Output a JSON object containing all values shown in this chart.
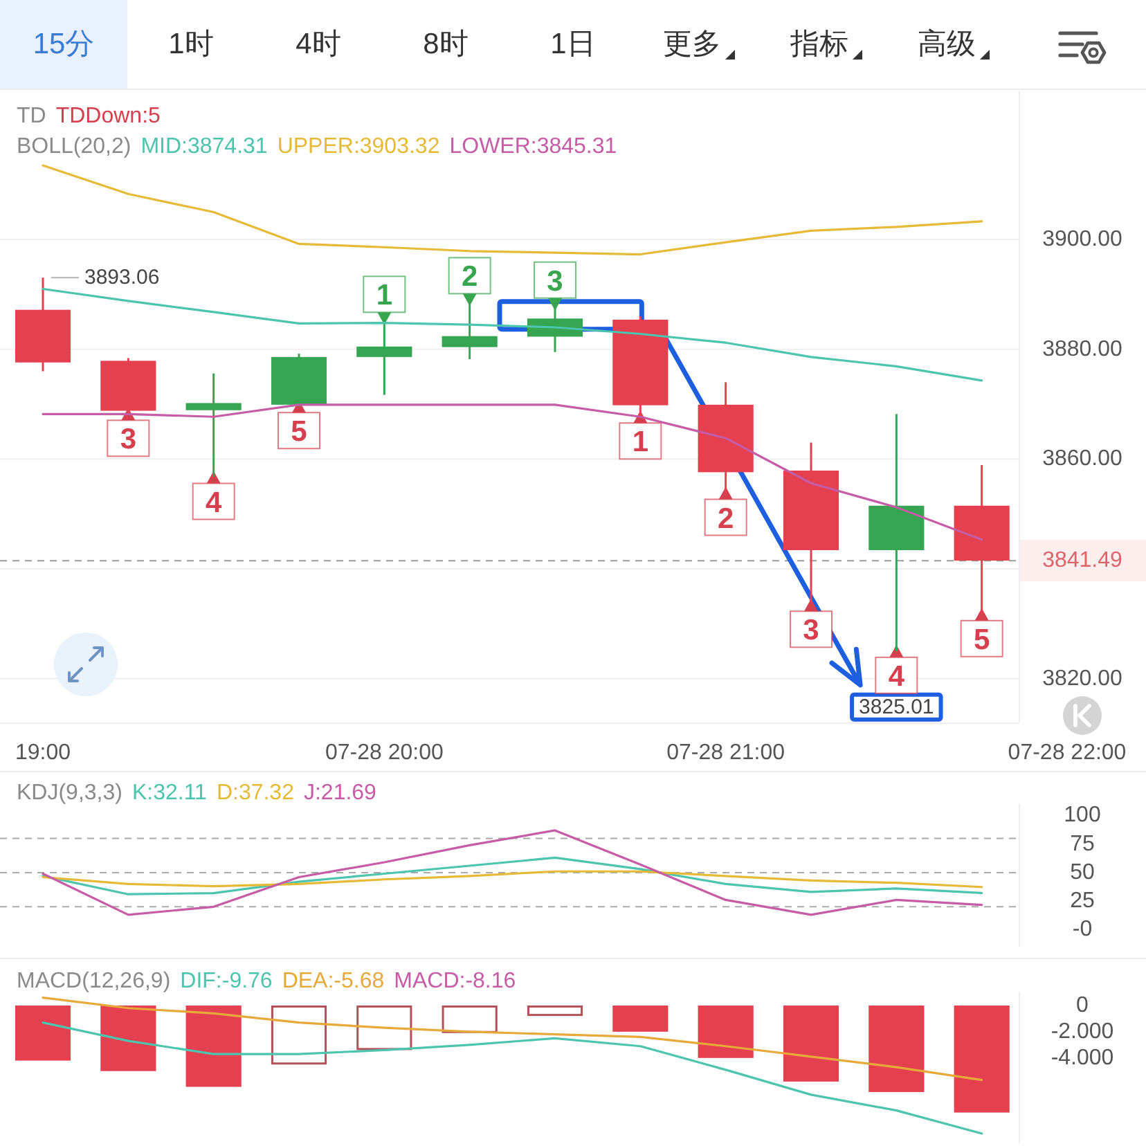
{
  "chart_data": [
    {
      "type": "other",
      "annotations": [
        "15分",
        "1时",
        "4时",
        "8时",
        "1日",
        "更多",
        "指标",
        "高级"
      ]
    },
    {
      "type": "candlestick",
      "categories": [
        "19:00",
        null,
        null,
        null,
        "07-28 20:00",
        null,
        null,
        null,
        "07-28 21:00",
        null,
        null,
        null,
        "07-28 22:00"
      ],
      "ohlc": [
        [
          3887.2,
          3893.06,
          3876.0,
          3877.6
        ],
        [
          3877.9,
          3878.4,
          3868.2,
          3868.8
        ],
        [
          3868.9,
          3875.6,
          3856.7,
          3870.2
        ],
        [
          3869.9,
          3879.2,
          3869.6,
          3878.6
        ],
        [
          3878.6,
          3885.6,
          3871.7,
          3880.5
        ],
        [
          3880.4,
          3889.0,
          3878.2,
          3882.4
        ],
        [
          3882.3,
          3888.2,
          3879.5,
          3885.6
        ],
        [
          3885.4,
          3886.0,
          3867.7,
          3869.8
        ],
        [
          3869.9,
          3874.0,
          3853.8,
          3857.6
        ],
        [
          3857.9,
          3863.0,
          3833.4,
          3843.4
        ],
        [
          3843.4,
          3868.2,
          3825.01,
          3851.5
        ],
        [
          3851.5,
          3858.9,
          3831.7,
          3841.49
        ],
        null
      ],
      "colors": [
        "#e5404f",
        "#e5404f",
        "#35a552",
        "#35a552",
        "#35a552",
        "#35a552",
        "#35a552",
        "#e5404f",
        "#e5404f",
        "#e5404f",
        "#35a552",
        "#e5404f",
        null
      ],
      "series": [
        {
          "name": "TDDown:5",
          "type": "scatter",
          "marker": "triangle",
          "color": "#d6404e",
          "values": [
            null,
            3868.2,
            3856.7,
            3869.6,
            null,
            null,
            null,
            3867.7,
            3853.8,
            3833.4,
            3825.01,
            3831.7,
            null
          ]
        },
        {
          "type": "scatter",
          "marker": "triangle",
          "color": "#38a54f",
          "values": [
            null,
            null,
            null,
            null,
            3885.6,
            3889.0,
            3888.2,
            null,
            null,
            null,
            null,
            null,
            null
          ]
        },
        {
          "name": "MID:3874.31",
          "type": "line",
          "color": "#4cc4ae",
          "values": [
            3891.0,
            3888.8,
            3886.8,
            3884.7,
            3884.8,
            3884.5,
            3884.0,
            3882.8,
            3881.2,
            3878.6,
            3876.9,
            3874.31,
            null
          ]
        },
        {
          "name": "UPPER:3903.32",
          "type": "line",
          "color": "#e6b936",
          "values": [
            3913.5,
            3908.3,
            3905.0,
            3899.2,
            3898.6,
            3897.9,
            3897.6,
            3897.3,
            3899.5,
            3901.6,
            3902.3,
            3903.32,
            null
          ]
        },
        {
          "name": "LOWER:3845.31",
          "type": "line",
          "color": "#c65ba6",
          "values": [
            3868.2,
            3868.2,
            3867.7,
            3869.9,
            3869.9,
            3869.9,
            3869.9,
            3867.7,
            3863.8,
            3855.6,
            3851.2,
            3845.31,
            null
          ]
        }
      ],
      "ylim": [
        3812,
        3927
      ],
      "yticks": [
        {
          "value": 3820,
          "label": "3820.00"
        },
        {
          "value": 3840,
          "label": null
        },
        {
          "value": 3860,
          "label": "3860.00"
        },
        {
          "value": 3880,
          "label": "3880.00"
        },
        {
          "value": 3900,
          "label": "3900.00"
        }
      ],
      "grid": "y",
      "legend": "top left",
      "ref_lines": [
        {
          "axis": "y",
          "value": 3841.49,
          "label": "3841.49",
          "color": "#9a9a9a",
          "line_style": "dashed"
        }
      ],
      "annotations": [
        "TD",
        "BOLL(20,2)",
        {
          "text": "3893.06",
          "x": "19:00",
          "y": 3893.06
        },
        {
          "text": "3",
          "y": 3868.2
        },
        {
          "text": "4",
          "y": 3856.7
        },
        {
          "text": "5",
          "y": 3869.6
        },
        {
          "text": "1",
          "y": 3885.6
        },
        {
          "text": "2",
          "y": 3889.0
        },
        {
          "text": "3",
          "y": 3888.2
        },
        {
          "text": "1",
          "y": 3867.7
        },
        {
          "text": "2",
          "y": 3853.8
        },
        {
          "text": "3",
          "y": 3833.4
        },
        {
          "text": "4",
          "y": 3825.01
        },
        {
          "text": "5",
          "y": 3831.7
        },
        {
          "text": "3825.01",
          "y": 3825.01
        }
      ]
    },
    {
      "type": "line",
      "legend_title": "KDJ(9,3,3)",
      "legend": "top left",
      "categories": [
        null,
        null,
        null,
        null,
        null,
        null,
        null,
        null,
        null,
        null,
        null,
        null,
        null
      ],
      "ylim": [
        -15,
        110
      ],
      "yticks": [
        100,
        75,
        50,
        25,
        {
          "value": 0,
          "label": "-0"
        }
      ],
      "tick_labels": "y",
      "series": [
        {
          "name": "K:32.11",
          "color": "#4cc4ae",
          "values": [
            47,
            31,
            32,
            42,
            49,
            56,
            63,
            53,
            40,
            33,
            36,
            32.11,
            null
          ]
        },
        {
          "name": "D:37.32",
          "color": "#e6b936",
          "values": [
            46,
            40,
            38,
            40,
            44,
            47,
            51,
            51,
            47,
            43,
            41,
            37.32,
            null
          ]
        },
        {
          "name": "J:21.69",
          "color": "#c65ba6",
          "values": [
            49,
            13,
            20,
            46,
            59,
            74,
            87,
            57,
            26,
            13,
            26,
            21.69,
            null
          ]
        }
      ],
      "ref_lines": [
        {
          "axis": "y",
          "value": 80,
          "color": "#aaaaaa",
          "line_style": "dashed"
        },
        {
          "axis": "y",
          "value": 50,
          "color": "#aaaaaa",
          "line_style": "dashed"
        },
        {
          "axis": "y",
          "value": 20,
          "color": "#aaaaaa",
          "line_style": "dashed"
        }
      ]
    },
    {
      "type": "bar",
      "legend_title": "MACD(12,26,9)",
      "legend": "top left",
      "categories": [
        null,
        null,
        null,
        null,
        null,
        null,
        null,
        null,
        null,
        null,
        null,
        null,
        null
      ],
      "ylim": [
        -10.5,
        1
      ],
      "yticks": [
        0,
        {
          "value": -2,
          "label": "-2.000"
        },
        {
          "value": -4,
          "label": "-4.000"
        }
      ],
      "tick_labels": "y",
      "series": [
        {
          "name": "DIF:-9.76",
          "type": "line",
          "color": "#4cc4ae",
          "values": [
            -1.3,
            -2.7,
            -3.7,
            -3.7,
            -3.4,
            -3.0,
            -2.5,
            -3.1,
            -4.9,
            -6.8,
            -8.0,
            -9.76,
            null
          ]
        },
        {
          "name": "DEA:-5.68",
          "type": "line",
          "color": "#e6a93a",
          "values": [
            0.6,
            -0.2,
            -0.6,
            -1.3,
            -1.7,
            -2.0,
            -2.2,
            -2.4,
            -3.1,
            -3.9,
            -4.7,
            -5.68,
            null
          ]
        },
        {
          "name": "MACD:-8.16",
          "color": "#c65ba6",
          "colors": [
            "#e5404f",
            "#e5404f",
            "#e5404f",
            "#b3515b",
            "#b3515b",
            "#b3515b",
            "#b3515b",
            "#e5404f",
            "#e5404f",
            "#e5404f",
            "#e5404f",
            "#e5404f",
            null
          ],
          "values": [
            -4.2,
            -5.0,
            -6.2,
            -4.5,
            -3.4,
            -2.1,
            -0.8,
            -2.0,
            -4.0,
            -5.8,
            -6.6,
            -8.16,
            null
          ]
        }
      ]
    }
  ]
}
